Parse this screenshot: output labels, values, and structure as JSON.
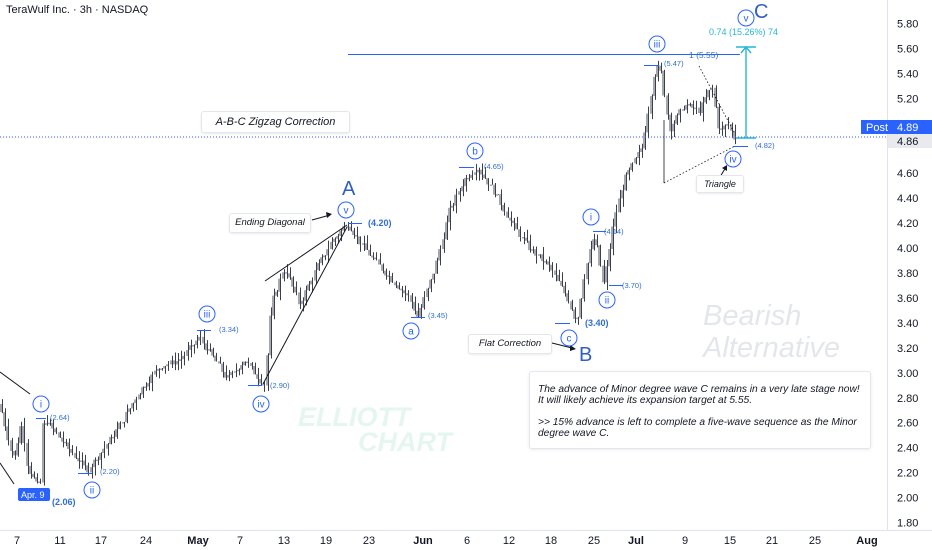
{
  "header": {
    "symbol_line": "TeraWulf Inc. · 3h · NASDAQ"
  },
  "chart_data": {
    "type": "candlestick",
    "ylim": [
      1.8,
      5.8
    ],
    "y_ticks": [
      "5.80",
      "5.60",
      "5.40",
      "5.20",
      "4.60",
      "4.40",
      "4.20",
      "4.00",
      "3.80",
      "3.60",
      "3.40",
      "3.20",
      "3.00",
      "2.80",
      "2.60",
      "2.40",
      "2.20",
      "2.00",
      "1.80"
    ],
    "x_ticks": [
      "7",
      "11",
      "17",
      "24",
      "May",
      "7",
      "13",
      "19",
      "23",
      "Jun",
      "6",
      "12",
      "18",
      "25",
      "Jul",
      "9",
      "15",
      "21",
      "25",
      "Aug"
    ],
    "last_price_label": "Post",
    "last_price": "4.89",
    "current_price": "4.86",
    "key_points": [
      {
        "label": "(2.06)",
        "value": 2.06
      },
      {
        "label": "(2.64)",
        "value": 2.64
      },
      {
        "label": "(2.20)",
        "value": 2.2
      },
      {
        "label": "(3.34)",
        "value": 3.34
      },
      {
        "label": "(2.90)",
        "value": 2.9
      },
      {
        "label": "(4.20)",
        "value": 4.2
      },
      {
        "label": "(3.45)",
        "value": 3.45
      },
      {
        "label": "(4.65)",
        "value": 4.65
      },
      {
        "label": "(3.40)",
        "value": 3.4
      },
      {
        "label": "(4.14)",
        "value": 4.14
      },
      {
        "label": "(3.70)",
        "value": 3.7
      },
      {
        "label": "(5.47)",
        "value": 5.47
      },
      {
        "label": "(4.82)",
        "value": 4.82
      }
    ]
  },
  "annotations": {
    "date_badge": "Apr. 9",
    "zigzag_title": "A-B-C Zigzag Correction",
    "ending_diagonal": "Ending Diagonal",
    "flat_correction": "Flat Correction",
    "triangle": "Triangle",
    "target_line": "1 (5.55)",
    "measure": "0.74 (15.26%) 74",
    "wave_A": "A",
    "wave_B": "B",
    "wave_C": "C",
    "labels": {
      "i": "i",
      "ii": "ii",
      "iii": "iii",
      "iv": "iv",
      "v": "v",
      "a": "a",
      "b": "b",
      "c": "c"
    },
    "note_p1": "The advance of Minor degree wave C remains in a very late stage now! It will likely achieve its expansion target at 5.55.",
    "note_p2": ">> 15% advance is left to complete a five-wave sequence as the Minor degree wave C.",
    "watermark_main_1": "Bearish",
    "watermark_main_2": "Alternative",
    "watermark_logo_1": "ELLIOTT",
    "watermark_logo_2": "CHART"
  },
  "colors": {
    "accent_blue": "#2962ff",
    "label_blue": "#2f6dd6",
    "measure_cyan": "#26b6d6",
    "candle": "#3a3f4b",
    "axis_text": "#131722",
    "post_badge": "#2962ff",
    "price_badge": "#e8eaee"
  }
}
